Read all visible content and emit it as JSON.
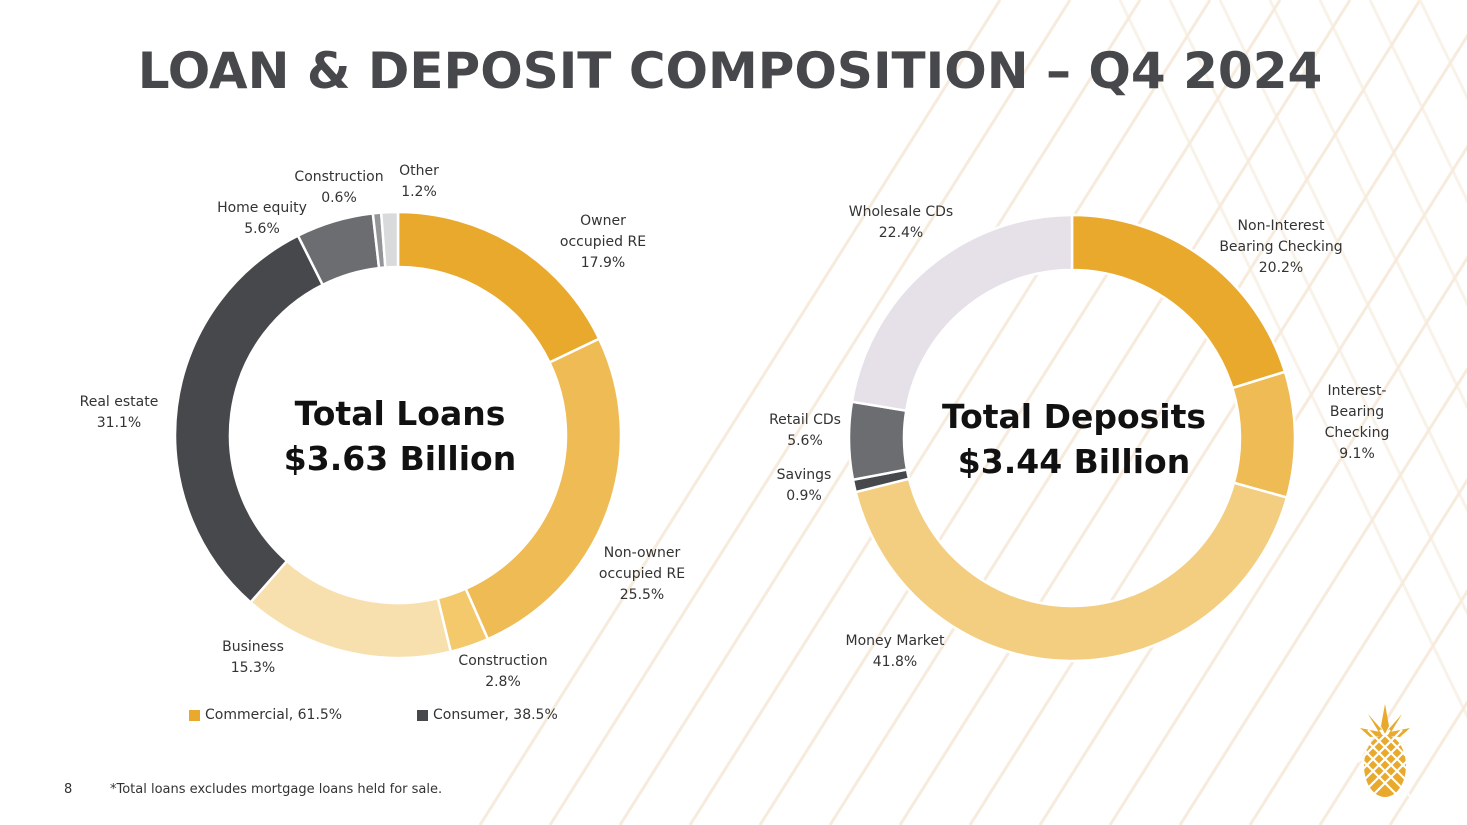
{
  "title": "LOAN & DEPOSIT COMPOSITION – Q4 2024",
  "page_number": "8",
  "footnote": "*Total loans excludes mortgage loans held for sale.",
  "colors": {
    "title": "#46484C",
    "accent": "#E8A92C",
    "logo": "#E8A92C"
  },
  "logo_icon": "pineapple-icon",
  "chart_data": [
    {
      "type": "pie",
      "variant": "donut",
      "center_label": [
        "Total Loans",
        "$3.63 Billion"
      ],
      "slices": [
        {
          "label": [
            "Owner",
            "occupied RE"
          ],
          "value": 17.9,
          "display": "17.9%",
          "color": "#E8A92C"
        },
        {
          "label": [
            "Non-owner",
            "occupied RE"
          ],
          "value": 25.5,
          "display": "25.5%",
          "color": "#EFBB54"
        },
        {
          "label": [
            "Construction"
          ],
          "value": 2.8,
          "display": "2.8%",
          "color": "#F3C96C"
        },
        {
          "label": [
            "Business"
          ],
          "value": 15.3,
          "display": "15.3%",
          "color": "#F8DFAE"
        },
        {
          "label": [
            "Real estate"
          ],
          "value": 31.1,
          "display": "31.1%",
          "color": "#46484C"
        },
        {
          "label": [
            "Home equity"
          ],
          "value": 5.6,
          "display": "5.6%",
          "color": "#6B6D70"
        },
        {
          "label": [
            "Construction"
          ],
          "value": 0.6,
          "display": "0.6%",
          "color": "#939598"
        },
        {
          "label": [
            "Other"
          ],
          "value": 1.2,
          "display": "1.2%",
          "color": "#D9DADB"
        }
      ],
      "legend": [
        {
          "label": "Commercial, 61.5%",
          "color": "#E8A92C"
        },
        {
          "label": "Consumer, 38.5%",
          "color": "#46484C"
        }
      ],
      "legend_placement": "bottom"
    },
    {
      "type": "pie",
      "variant": "donut",
      "center_label": [
        "Total Deposits",
        "$3.44 Billion"
      ],
      "slices": [
        {
          "label": [
            "Non-Interest",
            "Bearing Checking"
          ],
          "value": 20.2,
          "display": "20.2%",
          "color": "#E8A92C"
        },
        {
          "label": [
            "Interest-",
            "Bearing",
            "Checking"
          ],
          "value": 9.1,
          "display": "9.1%",
          "color": "#EFBB54"
        },
        {
          "label": [
            "Money Market"
          ],
          "value": 41.8,
          "display": "41.8%",
          "color": "#F4CE80"
        },
        {
          "label": [
            "Savings"
          ],
          "value": 0.9,
          "display": "0.9%",
          "color": "#46484C"
        },
        {
          "label": [
            "Retail CDs"
          ],
          "value": 5.6,
          "display": "5.6%",
          "color": "#6B6D70"
        },
        {
          "label": [
            "Wholesale CDs"
          ],
          "value": 22.4,
          "display": "22.4%",
          "color": "#E6E1E8"
        }
      ]
    }
  ]
}
